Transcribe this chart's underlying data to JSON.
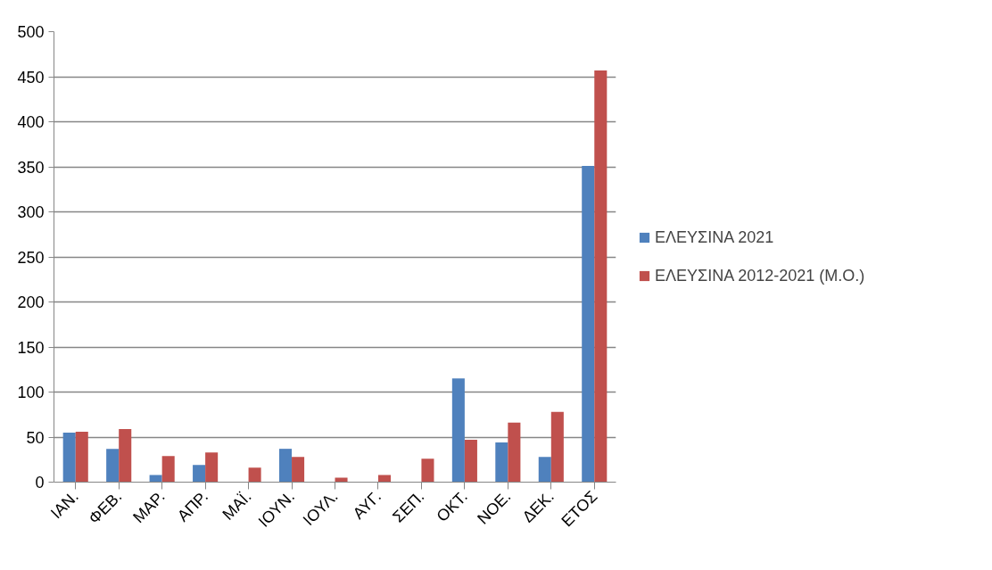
{
  "chart_data": {
    "type": "bar",
    "categories": [
      "ΙΑΝ.",
      "ΦΕΒ.",
      "ΜΑΡ.",
      "ΑΠΡ.",
      "ΜΑΪ.",
      "ΙΟΥΝ.",
      "ΙΟΥΛ.",
      "ΑΥΓ.",
      "ΣΕΠ.",
      "ΟΚΤ.",
      "ΝΟΕ.",
      "ΔΕΚ.",
      "ΕΤΟΣ"
    ],
    "series": [
      {
        "name": "ΕΛΕΥΣΙΝΑ 2021",
        "color": "#4f81bd",
        "values": [
          55,
          37,
          8,
          19,
          0,
          37,
          0,
          0,
          0,
          115,
          44,
          28,
          351
        ]
      },
      {
        "name": "ΕΛΕΥΣΙΝΑ 2012-2021 (Μ.Ο.)",
        "color": "#c0504d",
        "values": [
          56,
          59,
          29,
          33,
          16,
          28,
          5,
          8,
          26,
          47,
          66,
          78,
          457
        ]
      }
    ],
    "ylim": [
      0,
      500
    ],
    "yticks": [
      0,
      50,
      100,
      150,
      200,
      250,
      300,
      350,
      400,
      450,
      500
    ],
    "grid": "y",
    "legend": "right"
  }
}
